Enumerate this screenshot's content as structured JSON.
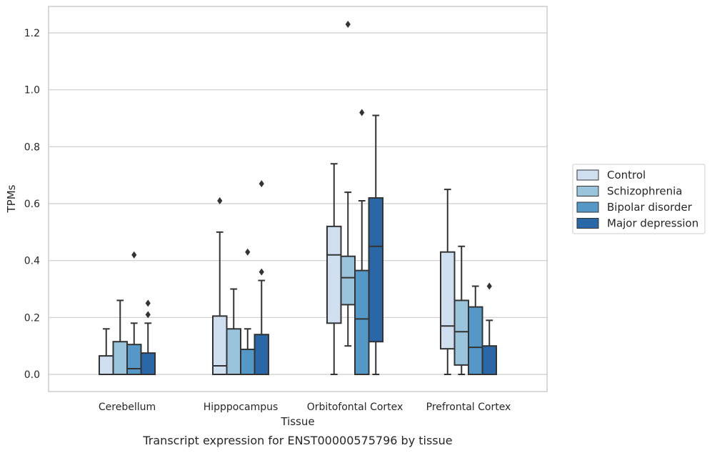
{
  "chart_data": {
    "type": "box",
    "xlabel": "Tissue",
    "ylabel": "TPMs",
    "caption": "Transcript expression for ENST00000575796 by tissue",
    "ylim": [
      -0.06,
      1.29
    ],
    "yticks": [
      0.0,
      0.2,
      0.4,
      0.6,
      0.8,
      1.0,
      1.2
    ],
    "ytick_labels": [
      "0.0",
      "0.2",
      "0.4",
      "0.6",
      "0.8",
      "1.0",
      "1.2"
    ],
    "grid": "horizontal",
    "legend_position": "right",
    "categories": [
      "Cerebellum",
      "Hipppocampus",
      "Orbitofontal Cortex",
      "Prefrontal Cortex"
    ],
    "series": [
      {
        "name": "Control",
        "color": "#d0dff0",
        "boxes": [
          {
            "min": 0.0,
            "q1": 0.0,
            "median": 0.0,
            "q3": 0.065,
            "max": 0.16,
            "outliers": []
          },
          {
            "min": 0.0,
            "q1": 0.0,
            "median": 0.03,
            "q3": 0.205,
            "max": 0.5,
            "outliers": [
              0.61
            ]
          },
          {
            "min": 0.0,
            "q1": 0.18,
            "median": 0.42,
            "q3": 0.52,
            "max": 0.74,
            "outliers": []
          },
          {
            "min": 0.0,
            "q1": 0.09,
            "median": 0.17,
            "q3": 0.43,
            "max": 0.65,
            "outliers": []
          }
        ]
      },
      {
        "name": "Schizophrenia",
        "color": "#9ac3dc",
        "boxes": [
          {
            "min": 0.0,
            "q1": 0.0,
            "median": 0.0,
            "q3": 0.115,
            "max": 0.26,
            "outliers": []
          },
          {
            "min": 0.0,
            "q1": 0.0,
            "median": 0.0,
            "q3": 0.16,
            "max": 0.3,
            "outliers": []
          },
          {
            "min": 0.1,
            "q1": 0.245,
            "median": 0.34,
            "q3": 0.415,
            "max": 0.64,
            "outliers": [
              1.23
            ]
          },
          {
            "min": 0.0,
            "q1": 0.033,
            "median": 0.15,
            "q3": 0.26,
            "max": 0.45,
            "outliers": []
          }
        ]
      },
      {
        "name": "Bipolar disorder",
        "color": "#5598c8",
        "boxes": [
          {
            "min": 0.0,
            "q1": 0.0,
            "median": 0.02,
            "q3": 0.105,
            "max": 0.18,
            "outliers": [
              0.42
            ]
          },
          {
            "min": 0.0,
            "q1": 0.0,
            "median": 0.0,
            "q3": 0.088,
            "max": 0.16,
            "outliers": [
              0.43
            ]
          },
          {
            "min": 0.0,
            "q1": 0.0,
            "median": 0.195,
            "q3": 0.365,
            "max": 0.61,
            "outliers": [
              0.92
            ]
          },
          {
            "min": 0.0,
            "q1": 0.0,
            "median": 0.095,
            "q3": 0.237,
            "max": 0.31,
            "outliers": []
          }
        ]
      },
      {
        "name": "Major depression",
        "color": "#2a67a6",
        "boxes": [
          {
            "min": 0.0,
            "q1": 0.0,
            "median": 0.0,
            "q3": 0.075,
            "max": 0.18,
            "outliers": [
              0.21,
              0.25
            ]
          },
          {
            "min": 0.0,
            "q1": 0.0,
            "median": 0.0,
            "q3": 0.14,
            "max": 0.33,
            "outliers": [
              0.36,
              0.67
            ]
          },
          {
            "min": 0.0,
            "q1": 0.115,
            "median": 0.45,
            "q3": 0.62,
            "max": 0.91,
            "outliers": []
          },
          {
            "min": 0.0,
            "q1": 0.0,
            "median": 0.0,
            "q3": 0.1,
            "max": 0.19,
            "outliers": [
              0.31
            ]
          }
        ]
      }
    ]
  }
}
